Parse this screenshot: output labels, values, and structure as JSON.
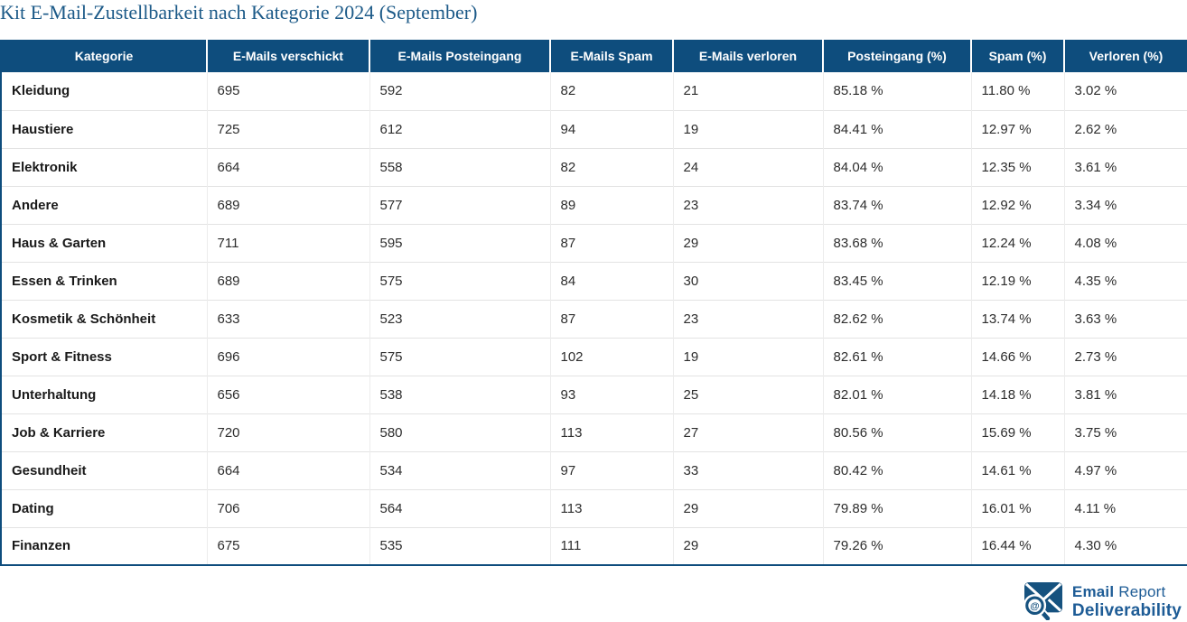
{
  "title": "Kit E-Mail-Zustellbarkeit nach Kategorie 2024 (September)",
  "chart_data": {
    "type": "table",
    "title": "Kit E-Mail-Zustellbarkeit nach Kategorie 2024 (September)",
    "columns": [
      "Kategorie",
      "E-Mails verschickt",
      "E-Mails Posteingang",
      "E-Mails Spam",
      "E-Mails verloren",
      "Posteingang (%)",
      "Spam (%)",
      "Verloren (%)"
    ],
    "percent_columns": [
      5,
      6,
      7
    ],
    "rows": [
      [
        "Kleidung",
        695,
        592,
        82,
        21,
        85.18,
        11.8,
        3.02
      ],
      [
        "Haustiere",
        725,
        612,
        94,
        19,
        84.41,
        12.97,
        2.62
      ],
      [
        "Elektronik",
        664,
        558,
        82,
        24,
        84.04,
        12.35,
        3.61
      ],
      [
        "Andere",
        689,
        577,
        89,
        23,
        83.74,
        12.92,
        3.34
      ],
      [
        "Haus & Garten",
        711,
        595,
        87,
        29,
        83.68,
        12.24,
        4.08
      ],
      [
        "Essen & Trinken",
        689,
        575,
        84,
        30,
        83.45,
        12.19,
        4.35
      ],
      [
        "Kosmetik & Schönheit",
        633,
        523,
        87,
        23,
        82.62,
        13.74,
        3.63
      ],
      [
        "Sport & Fitness",
        696,
        575,
        102,
        19,
        82.61,
        14.66,
        2.73
      ],
      [
        "Unterhaltung",
        656,
        538,
        93,
        25,
        82.01,
        14.18,
        3.81
      ],
      [
        "Job & Karriere",
        720,
        580,
        113,
        27,
        80.56,
        15.69,
        3.75
      ],
      [
        "Gesundheit",
        664,
        534,
        97,
        33,
        80.42,
        14.61,
        4.97
      ],
      [
        "Dating",
        706,
        564,
        113,
        29,
        79.89,
        16.01,
        4.11
      ],
      [
        "Finanzen",
        675,
        535,
        111,
        29,
        79.26,
        16.44,
        4.3
      ]
    ],
    "percent_suffix": " %"
  },
  "logo": {
    "brand_bold": "Email",
    "brand_regular": "Report",
    "brand_line2": "Deliverability",
    "icon": "envelope-magnifier-at"
  },
  "colors": {
    "header_bg": "#0E4D7D",
    "table_border": "#0E4D7D",
    "title_text": "#1C5A88",
    "brand_blue": "#1E5C96",
    "row_divider": "#E3E3E3",
    "body_text": "#2D2D2D",
    "category_text": "#1A1A1A"
  }
}
